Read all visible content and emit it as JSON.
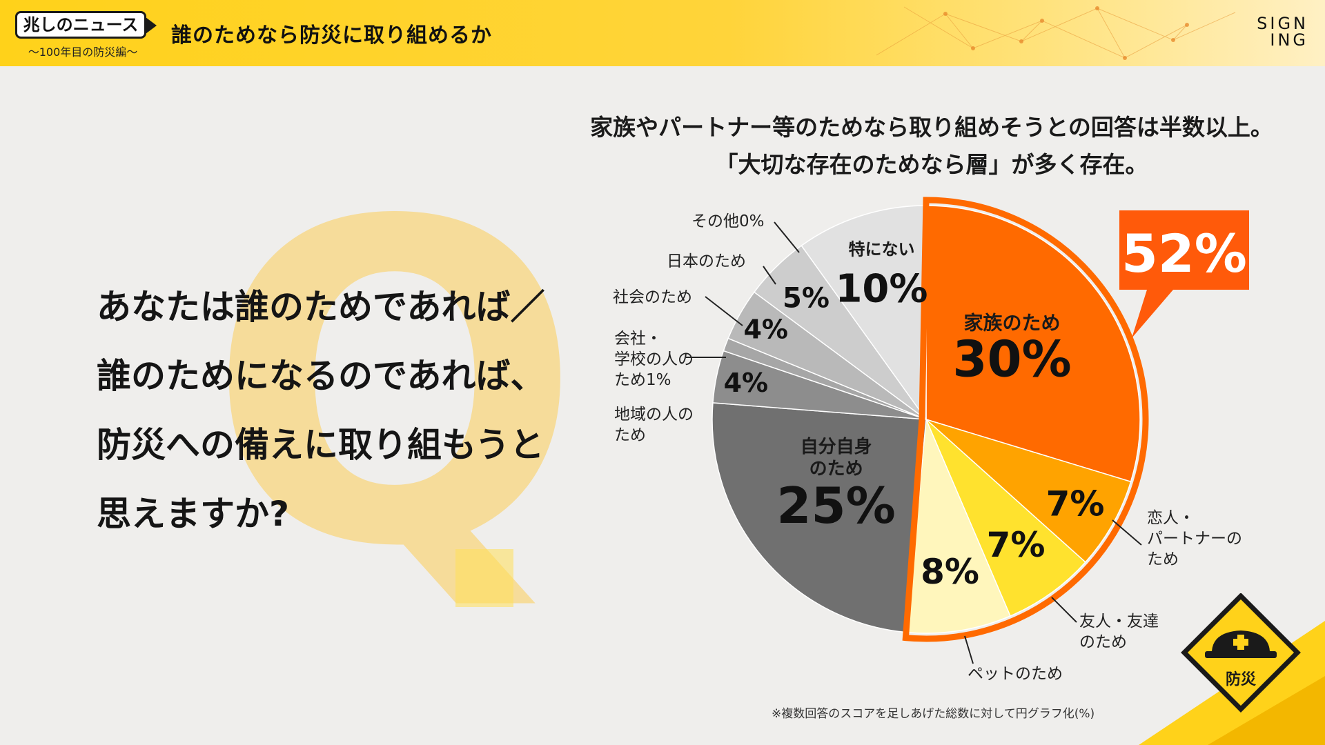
{
  "header": {
    "badge": "兆しのニュース",
    "badge_sub": "〜100年目の防災編〜",
    "title": "誰のためなら防災に取り組めるか",
    "brand_line1": "SIGN",
    "brand_line2": "ING"
  },
  "question": {
    "mark": "Q.",
    "lines": [
      "あなたは誰のためであれば／",
      "誰のためになるのであれば、",
      "防災への備えに取り組もうと",
      "思えますか?"
    ]
  },
  "headline": {
    "line1": "家族やパートナー等のためなら取り組めそうとの回答は半数以上。",
    "line2": "「大切な存在のためなら層」が多く存在。"
  },
  "callout": {
    "value": "52%",
    "color": "#ff5a0a"
  },
  "chart_data": {
    "type": "pie",
    "start_angle_deg": 0,
    "direction": "clockwise",
    "slices": [
      {
        "label": "家族のため",
        "value": 30,
        "value_label": "30%",
        "color": "#ff6a00"
      },
      {
        "label": "恋人・パートナーのため",
        "value": 7,
        "value_label": "7%",
        "color": "#ffa300"
      },
      {
        "label": "友人・友達のため",
        "value": 7,
        "value_label": "7%",
        "color": "#ffe22e"
      },
      {
        "label": "ペットのため",
        "value": 8,
        "value_label": "8%",
        "color": "#fff6bc"
      },
      {
        "label": "自分自身のため",
        "value": 25,
        "value_label": "25%",
        "color": "#707070"
      },
      {
        "label": "地域の人のため",
        "value": 4,
        "value_label": "4%",
        "color": "#8d8d8d"
      },
      {
        "label": "会社・学校の人のため1%",
        "value": 1,
        "value_label": "",
        "color": "#a6a6a6"
      },
      {
        "label": "社会のため",
        "value": 4,
        "value_label": "4%",
        "color": "#b9b9b9"
      },
      {
        "label": "日本のため",
        "value": 5,
        "value_label": "5%",
        "color": "#cdcdcd"
      },
      {
        "label": "その他0%",
        "value": 0,
        "value_label": "",
        "color": "#d6d6d6"
      },
      {
        "label": "特にない",
        "value": 10,
        "value_label": "10%",
        "color": "#e1e1e1"
      }
    ],
    "highlight_group": {
      "slices": [
        "家族のため",
        "恋人・パートナーのため",
        "友人・友達のため",
        "ペットのため"
      ],
      "total_label": "52%"
    },
    "footnote": "※複数回答のスコアを足しあげた総数に対して円グラフ化(%)"
  },
  "sign": {
    "label": "防災",
    "color": "#ffd21a"
  }
}
